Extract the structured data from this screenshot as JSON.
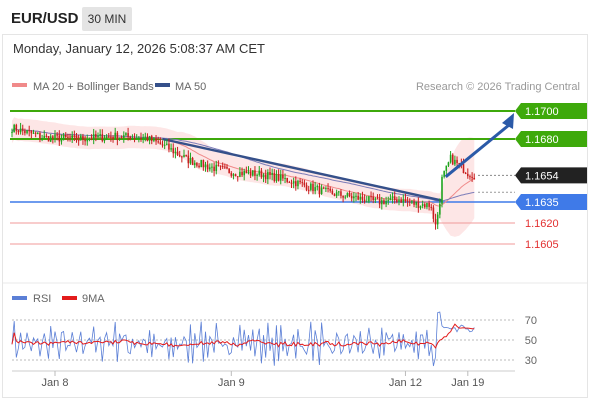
{
  "header": {
    "symbol": "EUR/USD",
    "timeframe": "30 MIN"
  },
  "timestamp": "Monday, January 12, 2026 5:08:37 AM CET",
  "legend": {
    "ma20_label": "MA 20 + Bollinger Bands",
    "ma50_label": "MA 50",
    "ma20_color": "#f08a8a",
    "ma50_color": "#35508a",
    "copyright": "Research © 2026 Trading Central"
  },
  "rsi_legend": {
    "rsi_label": "RSI",
    "ma9_label": "9MA",
    "rsi_color": "#5b7fd6",
    "ma9_color": "#e31c1c"
  },
  "colors": {
    "up": "#1ea41e",
    "down": "#c81e1e",
    "resistance": "#3ea90b",
    "support": "#3f7ae8",
    "target": "#f09a9a",
    "arrow": "#2b5aa8"
  },
  "chart_data": [
    {
      "type": "candlestick",
      "title": "",
      "ylim": [
        1.1595,
        1.1715
      ],
      "xlim": [
        0,
        240
      ],
      "x_ticks": [
        {
          "label": "Jan 8",
          "x": 20
        },
        {
          "label": "Jan 9",
          "x": 102
        },
        {
          "label": "Jan 12",
          "x": 183
        },
        {
          "label": "Jan 19",
          "x": 212
        }
      ],
      "current_price": "1.1654",
      "levels": [
        {
          "label": "1.1700",
          "value": 1.17,
          "kind": "resistance"
        },
        {
          "label": "1.1680",
          "value": 1.168,
          "kind": "resistance"
        },
        {
          "label": "1.1654",
          "value": 1.1654,
          "kind": "current"
        },
        {
          "label": "1.1635",
          "value": 1.1635,
          "kind": "support"
        },
        {
          "label": "1.1620",
          "value": 1.162,
          "kind": "target"
        },
        {
          "label": "1.1605",
          "value": 1.1605,
          "kind": "target"
        }
      ],
      "forecast_arrow": {
        "from": [
          198,
          1.1653
        ],
        "to": [
          210,
          1.17
        ]
      },
      "series": [
        {
          "name": "MA 20 + Bollinger Bands",
          "type": "band"
        },
        {
          "name": "MA 50",
          "type": "line"
        }
      ]
    },
    {
      "type": "line",
      "title": "",
      "ylim": [
        20,
        80
      ],
      "y_ticks": [
        70,
        50,
        30
      ],
      "series": [
        {
          "name": "RSI"
        },
        {
          "name": "9MA"
        }
      ]
    }
  ]
}
